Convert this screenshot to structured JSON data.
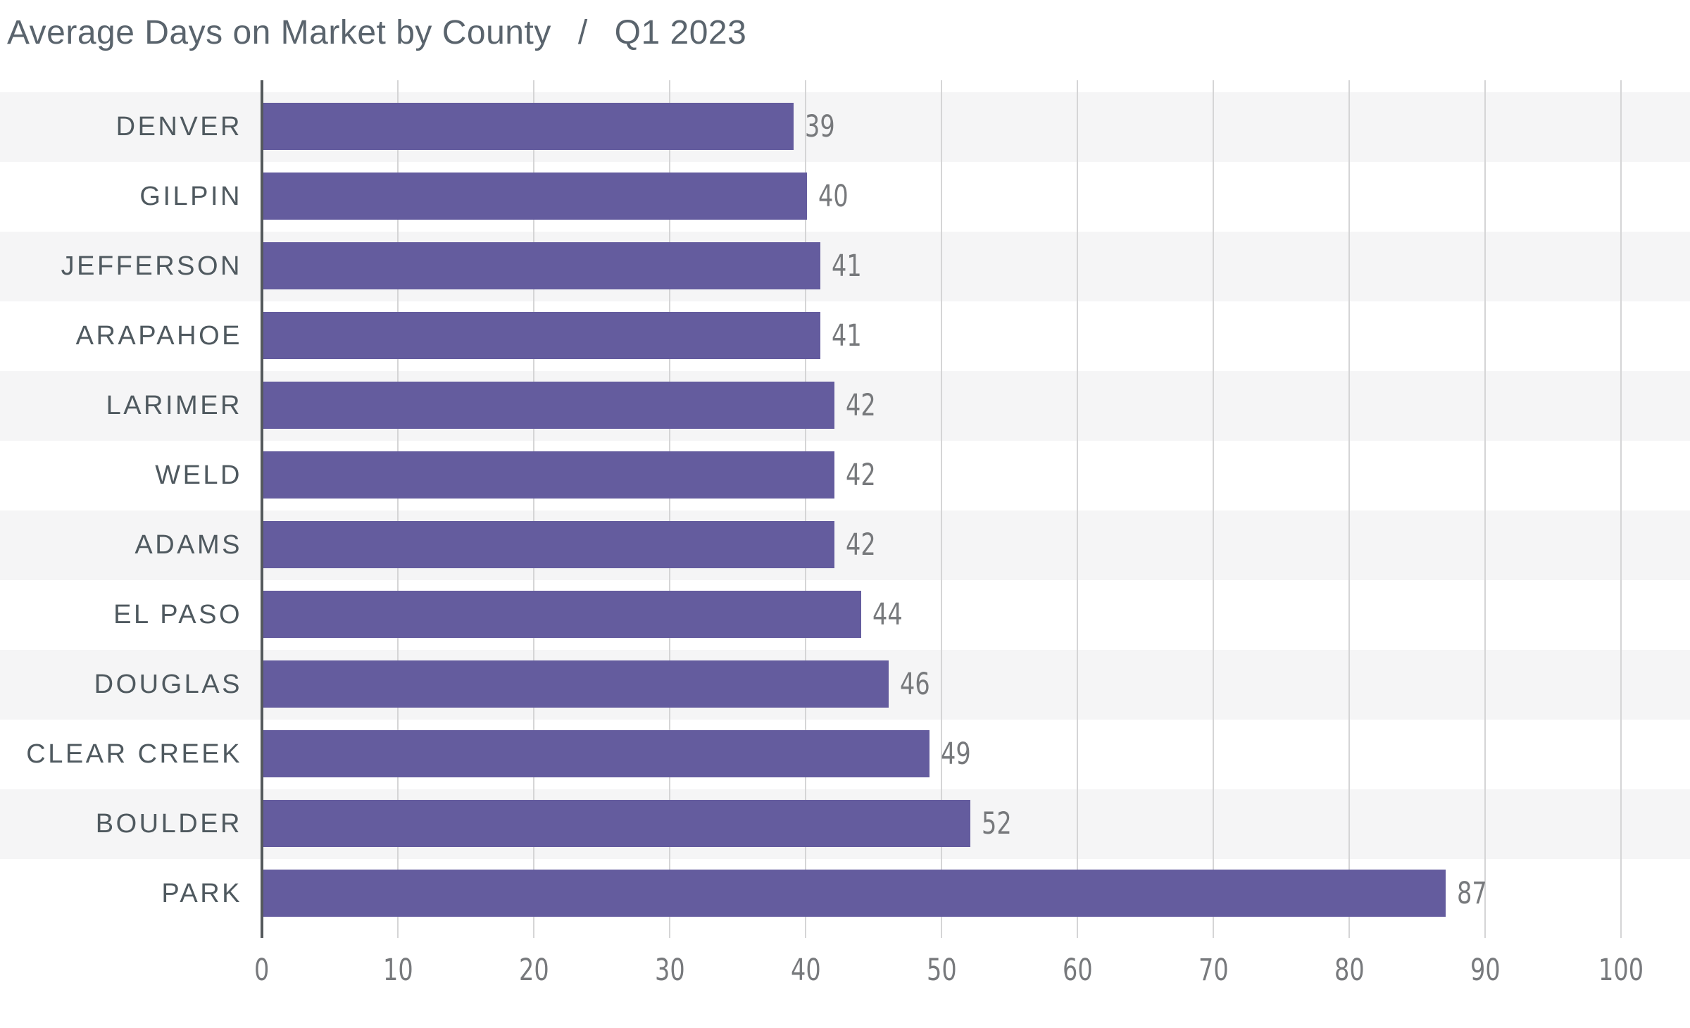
{
  "header": {
    "title": "Average Days on Market by County",
    "separator": "/",
    "period": "Q1 2023"
  },
  "chart_data": {
    "type": "bar",
    "orientation": "horizontal",
    "title": "Average Days on Market by County",
    "subtitle": "Q1 2023",
    "categories": [
      "DENVER",
      "GILPIN",
      "JEFFERSON",
      "ARAPAHOE",
      "LARIMER",
      "WELD",
      "ADAMS",
      "EL PASO",
      "DOUGLAS",
      "CLEAR CREEK",
      "BOULDER",
      "PARK"
    ],
    "values": [
      39,
      40,
      41,
      41,
      42,
      42,
      42,
      44,
      46,
      49,
      52,
      87
    ],
    "value_labels": true,
    "xlabel": "",
    "ylabel": "",
    "xlim": [
      0,
      100
    ],
    "xticks": [
      0,
      10,
      20,
      30,
      40,
      50,
      60,
      70,
      80,
      90,
      100
    ],
    "grid": "vertical",
    "row_shading": "alternating",
    "legend": "none"
  },
  "colors": {
    "bar": "#645C9E",
    "stripe": "#F5F5F6",
    "gridline": "#D5D5D6",
    "axis": "#54595C",
    "title": "#5A646D",
    "category_label": "#4F595F",
    "number_label": "#77797C",
    "background": "#FFFFFF"
  }
}
